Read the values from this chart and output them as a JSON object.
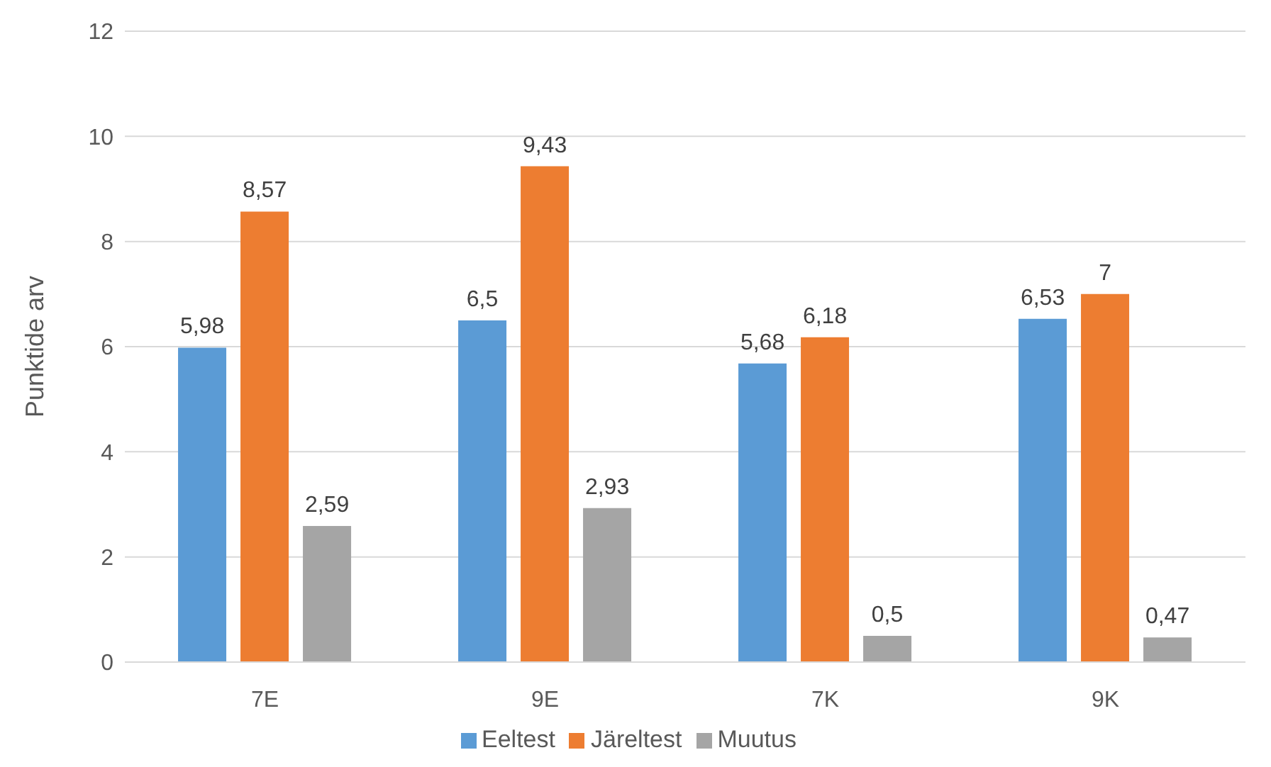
{
  "chart_data": {
    "type": "bar",
    "ylabel": "Punktide arv",
    "categories": [
      "7E",
      "9E",
      "7K",
      "9K"
    ],
    "series": [
      {
        "name": "Eeltest",
        "color": "#5b9bd5",
        "values": [
          5.98,
          6.5,
          5.68,
          6.53
        ],
        "value_labels": [
          "5,98",
          "6,5",
          "5,68",
          "6,53"
        ]
      },
      {
        "name": "Järeltest",
        "color": "#ed7d31",
        "values": [
          8.57,
          9.43,
          6.18,
          7
        ],
        "value_labels": [
          "8,57",
          "9,43",
          "6,18",
          "7"
        ]
      },
      {
        "name": "Muutus",
        "color": "#a5a5a5",
        "values": [
          2.59,
          2.93,
          0.5,
          0.47
        ],
        "value_labels": [
          "2,59",
          "2,93",
          "0,5",
          "0,47"
        ]
      }
    ],
    "ylim": [
      0,
      12
    ],
    "yticks": [
      0,
      2,
      4,
      6,
      8,
      10,
      12
    ],
    "grid": "y",
    "legend": "bottom"
  }
}
